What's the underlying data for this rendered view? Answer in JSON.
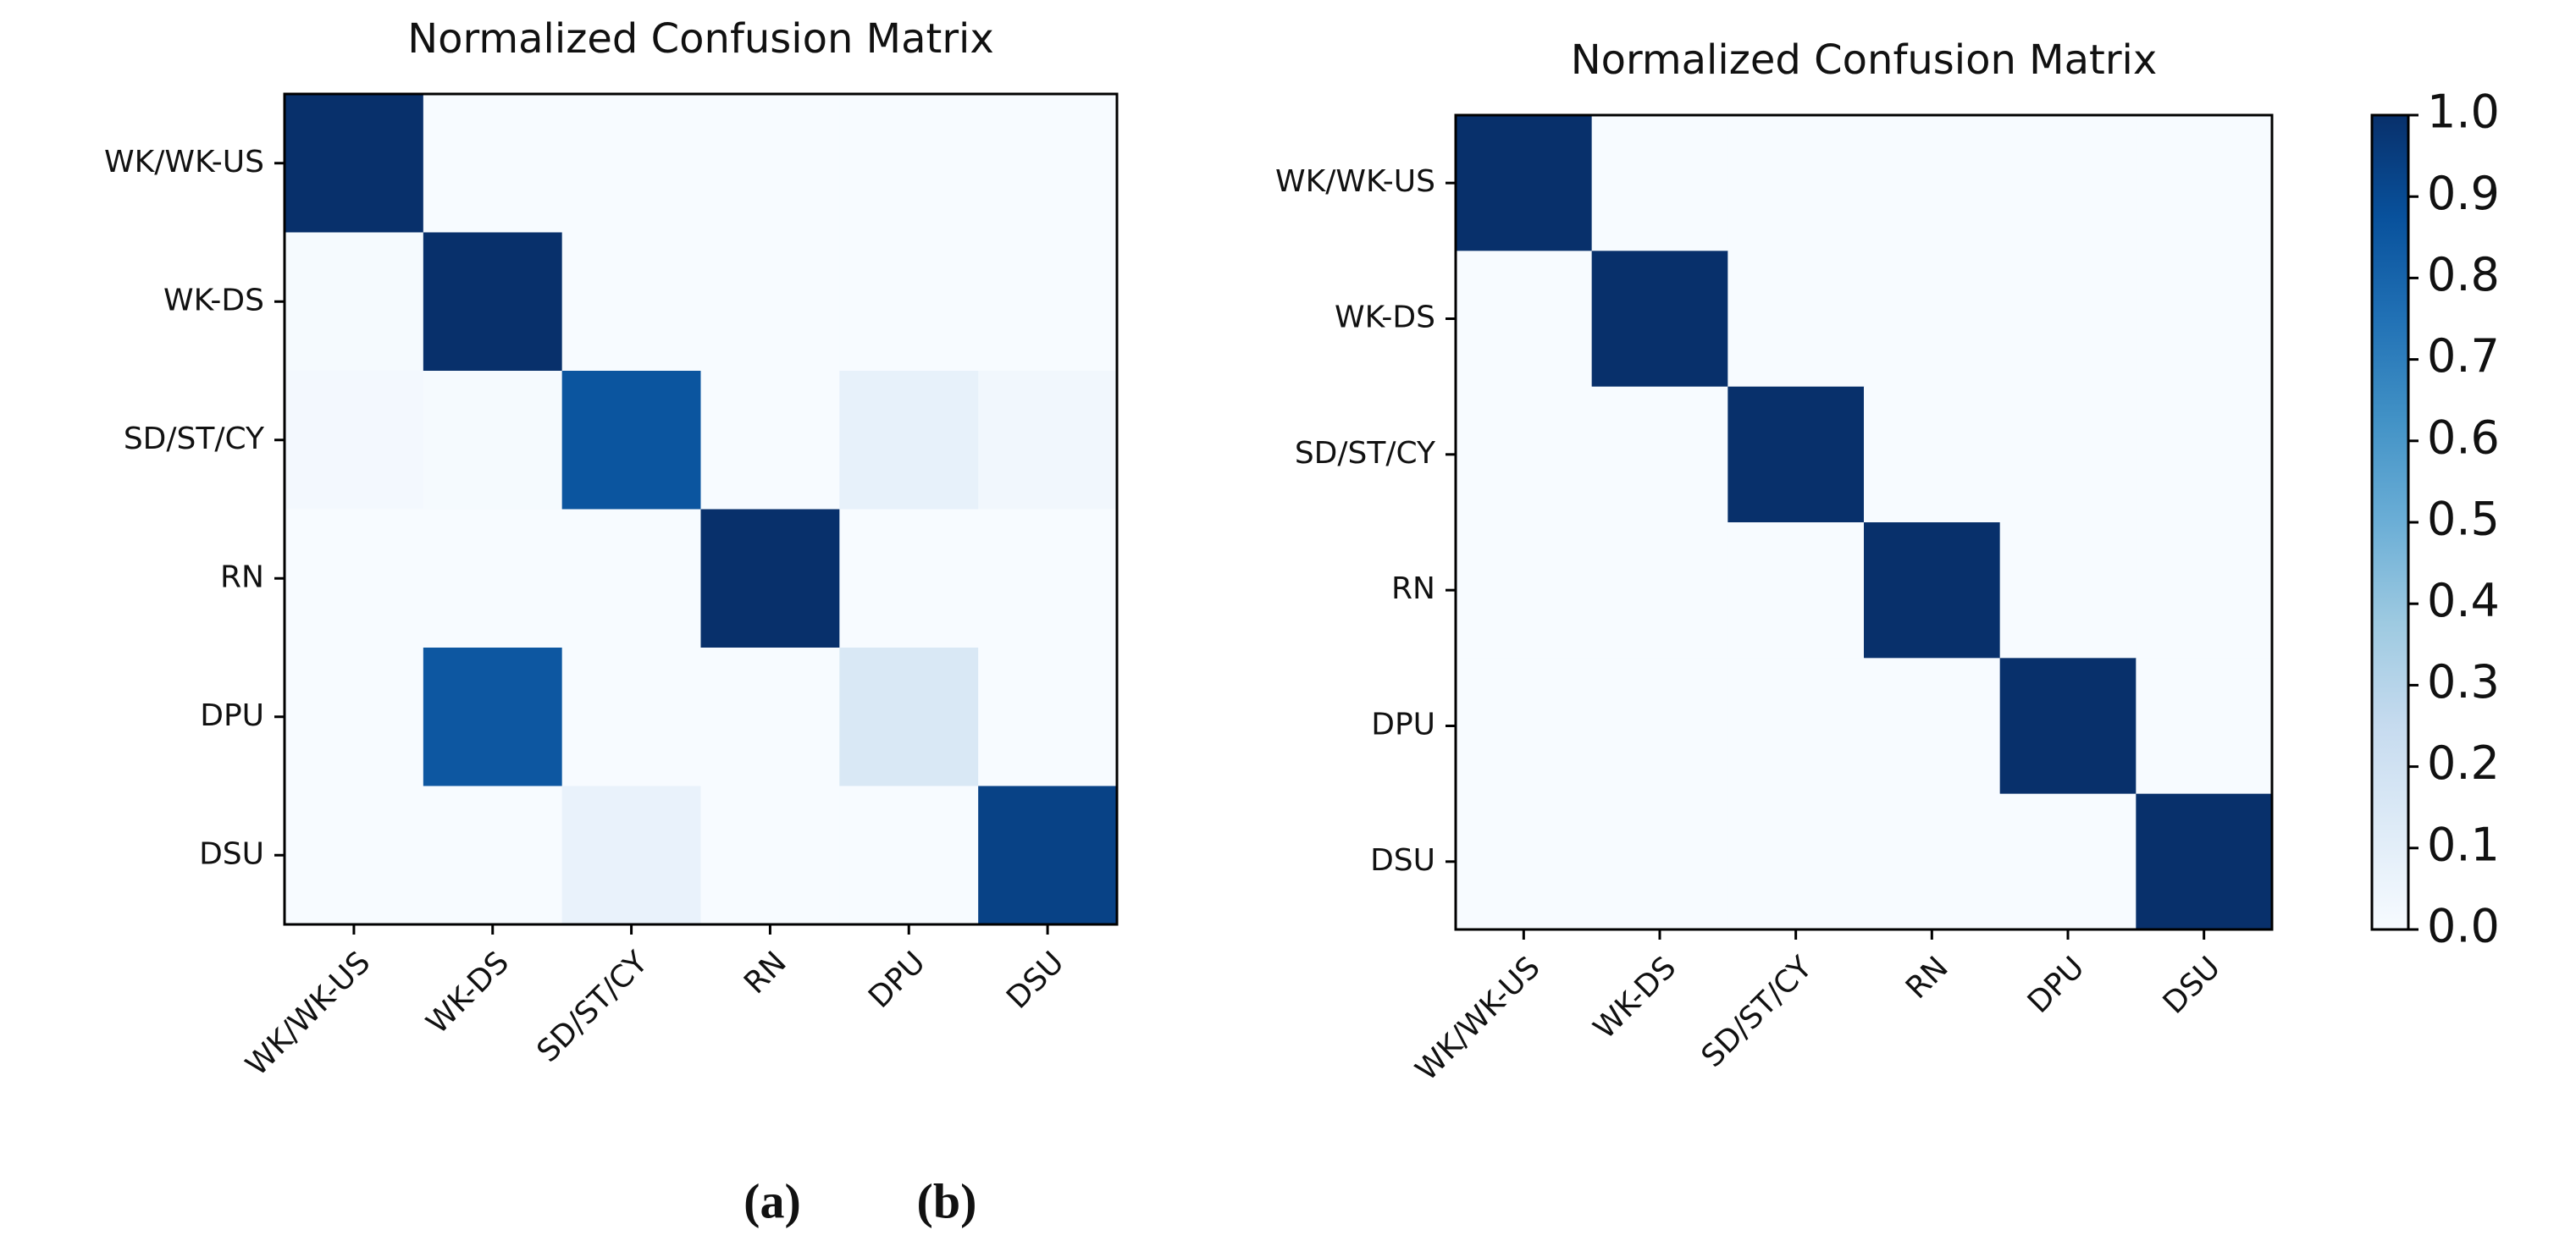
{
  "chart_data": [
    {
      "type": "heatmap",
      "title": "Normalized Confusion Matrix",
      "caption": "(a)",
      "categories": [
        "WK/WK-US",
        "WK-DS",
        "SD/ST/CY",
        "RN",
        "DPU",
        "DSU"
      ],
      "y_categories": [
        "WK/WK-US",
        "WK-DS",
        "SD/ST/CY",
        "RN",
        "DPU",
        "DSU"
      ],
      "values": [
        [
          1.0,
          0,
          0,
          0,
          0,
          0
        ],
        [
          0.01,
          1.0,
          0,
          0,
          0,
          0
        ],
        [
          0.02,
          0.01,
          0.86,
          0,
          0.08,
          0.03
        ],
        [
          0,
          0,
          0,
          1.0,
          0,
          0
        ],
        [
          0,
          0.85,
          0,
          0,
          0.15,
          0
        ],
        [
          0,
          0,
          0.07,
          0,
          0,
          0.93
        ]
      ],
      "clim": [
        0,
        1
      ],
      "colors": [
        "#f7fbff",
        "#deebf7",
        "#c6dbef",
        "#9ecae1",
        "#6baed6",
        "#4292c6",
        "#2171b5",
        "#08519c",
        "#08306b"
      ]
    },
    {
      "type": "heatmap",
      "title": "Normalized Confusion Matrix",
      "caption": "(b)",
      "categories": [
        "WK/WK-US",
        "WK-DS",
        "SD/ST/CY",
        "RN",
        "DPU",
        "DSU"
      ],
      "y_categories": [
        "WK/WK-US",
        "WK-DS",
        "SD/ST/CY",
        "RN",
        "DPU",
        "DSU"
      ],
      "values": [
        [
          1.0,
          0,
          0,
          0,
          0,
          0
        ],
        [
          0,
          1.0,
          0,
          0,
          0,
          0
        ],
        [
          0,
          0,
          1.0,
          0,
          0,
          0
        ],
        [
          0,
          0,
          0,
          1.0,
          0,
          0
        ],
        [
          0,
          0,
          0,
          0,
          1.0,
          0
        ],
        [
          0,
          0,
          0,
          0,
          0,
          1.0
        ]
      ],
      "clim": [
        0,
        1
      ],
      "colors": [
        "#f7fbff",
        "#deebf7",
        "#c6dbef",
        "#9ecae1",
        "#6baed6",
        "#4292c6",
        "#2171b5",
        "#08519c",
        "#08306b"
      ],
      "colorbar_ticks": [
        {
          "value": 0,
          "label": "0.0"
        },
        {
          "value": 0.1,
          "label": "0.1"
        },
        {
          "value": 0.2,
          "label": "0.2"
        },
        {
          "value": 0.3,
          "label": "0.3"
        },
        {
          "value": 0.4,
          "label": "0.4"
        },
        {
          "value": 0.5,
          "label": "0.5"
        },
        {
          "value": 0.6,
          "label": "0.6"
        },
        {
          "value": 0.7,
          "label": "0.7"
        },
        {
          "value": 0.8,
          "label": "0.8"
        },
        {
          "value": 0.9,
          "label": "0.9"
        },
        {
          "value": 1.0,
          "label": "1.0"
        }
      ]
    }
  ]
}
